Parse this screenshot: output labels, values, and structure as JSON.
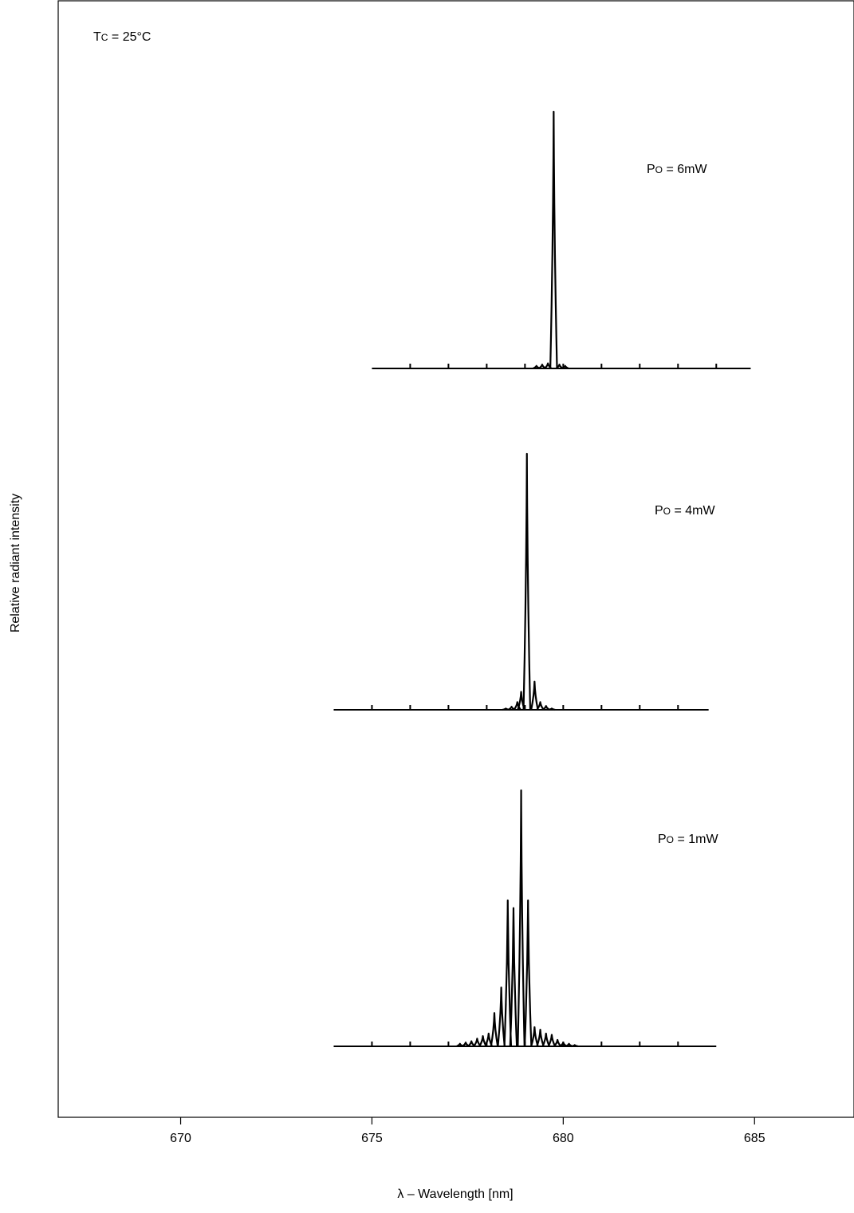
{
  "chart_data": {
    "type": "line",
    "title": "",
    "xlabel": "λ – Wavelength [nm]",
    "ylabel": "Relative radiant intensity",
    "xlim": [
      666.8,
      687.6
    ],
    "x_ticks": [
      670,
      675,
      680,
      685
    ],
    "x_tick_labels": [
      "670",
      "675",
      "680",
      "685"
    ],
    "grid": false,
    "condition": {
      "main": "T",
      "sub": "C",
      "rest": " = 25°C"
    },
    "series": [
      {
        "label": {
          "main": "P",
          "sub": "O",
          "rest": " = 6mW"
        },
        "x_range": [
          675,
          684.9
        ],
        "baseline_ticks": [
          676,
          677,
          678,
          679,
          680,
          681,
          682,
          683,
          684
        ],
        "peaks": [
          {
            "x": 679.3,
            "h": 0.01
          },
          {
            "x": 679.45,
            "h": 0.015
          },
          {
            "x": 679.6,
            "h": 0.02
          },
          {
            "x": 679.75,
            "h": 1.0
          },
          {
            "x": 679.9,
            "h": 0.015
          },
          {
            "x": 680.05,
            "h": 0.01
          }
        ]
      },
      {
        "label": {
          "main": "P",
          "sub": "O",
          "rest": " = 4mW"
        },
        "x_range": [
          674,
          683.8
        ],
        "baseline_ticks": [
          675,
          676,
          677,
          678,
          679,
          680,
          681,
          682,
          683
        ],
        "peaks": [
          {
            "x": 678.5,
            "h": 0.005
          },
          {
            "x": 678.65,
            "h": 0.012
          },
          {
            "x": 678.8,
            "h": 0.03
          },
          {
            "x": 678.9,
            "h": 0.07
          },
          {
            "x": 679.05,
            "h": 1.0
          },
          {
            "x": 679.25,
            "h": 0.11
          },
          {
            "x": 679.4,
            "h": 0.03
          },
          {
            "x": 679.55,
            "h": 0.015
          },
          {
            "x": 679.7,
            "h": 0.005
          }
        ]
      },
      {
        "label": {
          "main": "P",
          "sub": "O",
          "rest": " = 1mW"
        },
        "x_range": [
          674,
          684
        ],
        "baseline_ticks": [
          675,
          676,
          677,
          678,
          679,
          680,
          681,
          682,
          683
        ],
        "peaks": [
          {
            "x": 677.3,
            "h": 0.01
          },
          {
            "x": 677.45,
            "h": 0.015
          },
          {
            "x": 677.6,
            "h": 0.02
          },
          {
            "x": 677.75,
            "h": 0.03
          },
          {
            "x": 677.9,
            "h": 0.04
          },
          {
            "x": 678.05,
            "h": 0.05
          },
          {
            "x": 678.2,
            "h": 0.13
          },
          {
            "x": 678.38,
            "h": 0.23
          },
          {
            "x": 678.55,
            "h": 0.57
          },
          {
            "x": 678.7,
            "h": 0.54
          },
          {
            "x": 678.9,
            "h": 1.0
          },
          {
            "x": 679.08,
            "h": 0.57
          },
          {
            "x": 679.25,
            "h": 0.075
          },
          {
            "x": 679.4,
            "h": 0.065
          },
          {
            "x": 679.55,
            "h": 0.05
          },
          {
            "x": 679.7,
            "h": 0.045
          },
          {
            "x": 679.85,
            "h": 0.025
          },
          {
            "x": 680.0,
            "h": 0.015
          },
          {
            "x": 680.15,
            "h": 0.01
          },
          {
            "x": 680.3,
            "h": 0.005
          }
        ]
      }
    ]
  }
}
